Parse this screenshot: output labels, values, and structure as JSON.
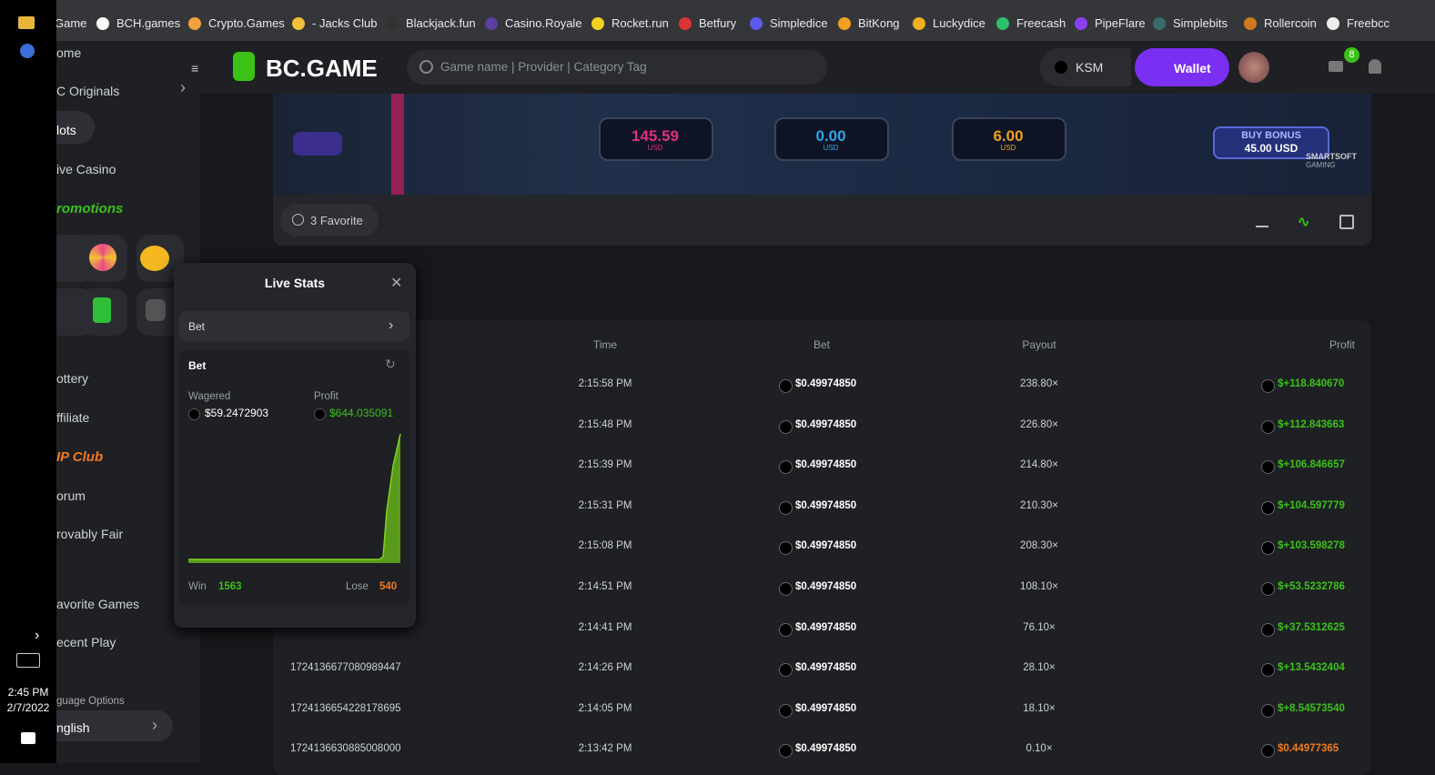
{
  "bookmarks": [
    "Game",
    "BCH.games",
    "Crypto.Games",
    "- Jacks Club",
    "Blackjack.fun",
    "Casino.Royale",
    "Rocket.run",
    "Betfury",
    "Simpledice",
    "BitKong",
    "Luckydice",
    "Freecash",
    "PipeFlare",
    "Simplebits",
    "Rollercoin",
    "Freebcc"
  ],
  "taskbar": {
    "time": "2:45 PM",
    "date": "2/7/2022"
  },
  "header": {
    "logo": "BC.GAME",
    "search_placeholder": "Game name | Provider | Category Tag",
    "currency": "KSM",
    "wallet": "Wallet",
    "mail_badge": "8"
  },
  "sidebar": [
    "ome",
    "C Originals",
    "lots",
    "ive Casino",
    "romotions",
    "ottery",
    "ffiliate",
    "IP Club",
    "orum",
    "rovably Fair",
    "avorite Games",
    "ecent Play",
    "guage Options",
    "nglish"
  ],
  "game": {
    "balance": "145.59",
    "balance_unit": "USD",
    "win": "0.00",
    "win_unit": "USD",
    "bet": "6.00",
    "bet_unit": "USD",
    "buy_bonus": "BUY BONUS",
    "buy_bonus_price": "45.00 USD",
    "provider": "SMARTSOFT",
    "provider_sub": "GAMING"
  },
  "favorite": "3 Favorite",
  "live_stats": {
    "title": "Live Stats",
    "selector": "Bet",
    "card_title": "Bet",
    "wagered_label": "Wagered",
    "wagered": "$59.2472903",
    "profit_label": "Profit",
    "profit": "$644.035091",
    "win_label": "Win",
    "win": "1563",
    "lose_label": "Lose",
    "lose": "540"
  },
  "table": {
    "headers": [
      "Time",
      "Bet",
      "Payout",
      "Profit"
    ],
    "rows": [
      [
        null,
        "2:15:58 PM",
        "$0.49974850",
        "238.80×",
        "$+118.840670"
      ],
      [
        null,
        "2:15:48 PM",
        "$0.49974850",
        "226.80×",
        "$+112.843663"
      ],
      [
        null,
        "2:15:39 PM",
        "$0.49974850",
        "214.80×",
        "$+106.846657"
      ],
      [
        null,
        "2:15:31 PM",
        "$0.49974850",
        "210.30×",
        "$+104.597779"
      ],
      [
        null,
        "2:15:08 PM",
        "$0.49974850",
        "208.30×",
        "$+103.598278"
      ],
      [
        null,
        "2:14:51 PM",
        "$0.49974850",
        "108.10×",
        "$+53.5232786"
      ],
      [
        null,
        "2:14:41 PM",
        "$0.49974850",
        "76.10×",
        "$+37.5312625"
      ],
      [
        "1724136677080989447",
        "2:14:26 PM",
        "$0.49974850",
        "28.10×",
        "$+13.5432404"
      ],
      [
        "1724136654228178695",
        "2:14:05 PM",
        "$0.49974850",
        "18.10×",
        "$+8.54573540"
      ],
      [
        "1724136630885008000",
        "2:13:42 PM",
        "$0.49974850",
        "0.10×",
        "$0.44977365"
      ]
    ]
  }
}
